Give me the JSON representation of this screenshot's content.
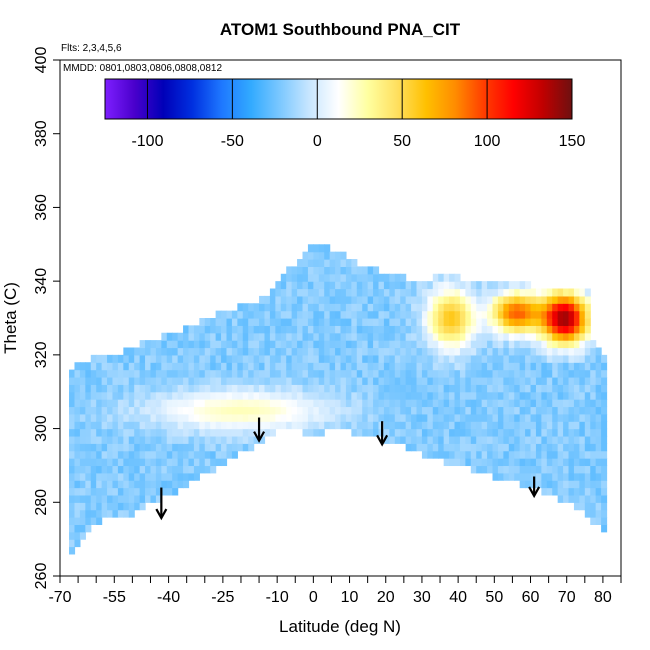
{
  "chart_data": {
    "type": "heatmap",
    "title": "ATOM1 Southbound PNA_CIT",
    "annotations": [
      "Flts: 2,3,4,5,6",
      "MMDD: 0801,0803,0806,0808,0812"
    ],
    "xlabel": "Latitude (deg N)",
    "ylabel": "Theta (C)",
    "xlim": [
      -70,
      85
    ],
    "ylim": [
      260,
      400
    ],
    "x_tick_labels": [
      "-70",
      "-55",
      "-40",
      "-25",
      "-10",
      "0",
      "10",
      "20",
      "30",
      "40",
      "50",
      "60",
      "70",
      "80"
    ],
    "x_tick_values": [
      -70,
      -55,
      -40,
      -25,
      -10,
      0,
      10,
      20,
      30,
      40,
      50,
      60,
      70,
      80
    ],
    "x_minor_ticks": [
      -65,
      -60,
      -50,
      -45,
      -35,
      -30,
      -20,
      -15,
      -5,
      5,
      15,
      25,
      35,
      45,
      55,
      65,
      75,
      85
    ],
    "y_tick_labels": [
      "260",
      "280",
      "300",
      "320",
      "340",
      "360",
      "380",
      "400"
    ],
    "y_tick_values": [
      260,
      280,
      300,
      320,
      340,
      360,
      380,
      400
    ],
    "colorbar": {
      "range": [
        -125,
        150
      ],
      "tick_labels": [
        "-100",
        "-50",
        "0",
        "50",
        "100",
        "150"
      ],
      "tick_values": [
        -100,
        -50,
        0,
        50,
        100,
        150
      ],
      "colors": [
        "#7e1fff",
        "#4a00cc",
        "#0000b8",
        "#0030e0",
        "#1e78ff",
        "#32aaff",
        "#7cc8ff",
        "#c8e6ff",
        "#ffffff",
        "#ffffa0",
        "#ffe060",
        "#ffc000",
        "#ff8c00",
        "#ff3c00",
        "#ff0000",
        "#c00000",
        "#6e1010"
      ]
    },
    "data_domain": {
      "bottom_boundary": [
        [
          -67.5,
          264
        ],
        [
          -65,
          268
        ],
        [
          -62,
          272
        ],
        [
          -58,
          276
        ],
        [
          -55,
          277
        ],
        [
          -51,
          276
        ],
        [
          -47,
          279
        ],
        [
          -42,
          281
        ],
        [
          -38,
          283
        ],
        [
          -33,
          286
        ],
        [
          -27,
          289
        ],
        [
          -22,
          292
        ],
        [
          -17,
          295
        ],
        [
          -13,
          297
        ],
        [
          -10,
          300
        ],
        [
          -5,
          300
        ],
        [
          0,
          298
        ],
        [
          5,
          300
        ],
        [
          10,
          299
        ],
        [
          15,
          298
        ],
        [
          20,
          297
        ],
        [
          30,
          293
        ],
        [
          40,
          290
        ],
        [
          50,
          287
        ],
        [
          60,
          284
        ],
        [
          65,
          282
        ],
        [
          70,
          280
        ],
        [
          76,
          276
        ],
        [
          80,
          272
        ]
      ],
      "top_boundary": [
        [
          -67.5,
          316
        ],
        [
          -60,
          320
        ],
        [
          -52,
          321
        ],
        [
          -45,
          324
        ],
        [
          -38,
          326
        ],
        [
          -32,
          329
        ],
        [
          -25,
          332
        ],
        [
          -18,
          334
        ],
        [
          -13,
          336
        ],
        [
          -10,
          340
        ],
        [
          -5,
          345
        ],
        [
          -2,
          348
        ],
        [
          0,
          350
        ],
        [
          5,
          349
        ],
        [
          10,
          346
        ],
        [
          15,
          344
        ],
        [
          20,
          342
        ],
        [
          25,
          341
        ],
        [
          30,
          340
        ],
        [
          35,
          342
        ],
        [
          40,
          341
        ],
        [
          50,
          340
        ],
        [
          60,
          339
        ],
        [
          70,
          338
        ],
        [
          76,
          338
        ],
        [
          76,
          325
        ],
        [
          80,
          320
        ]
      ]
    },
    "features": [
      {
        "name": "high-values-northern-upper",
        "x_range": [
          62,
          77
        ],
        "theta_range": [
          322,
          338
        ],
        "value_range": [
          90,
          140
        ]
      },
      {
        "name": "moderate-positive-north-upper",
        "x_range": [
          48,
          64
        ],
        "theta_range": [
          325,
          338
        ],
        "value_range": [
          50,
          90
        ]
      },
      {
        "name": "positive-band-30-45",
        "x_range": [
          30,
          46
        ],
        "theta_range": [
          320,
          340
        ],
        "value_range": [
          20,
          60
        ]
      },
      {
        "name": "negative-patch-near-20N",
        "x_range": [
          18,
          29
        ],
        "theta_range": [
          306,
          315
        ],
        "value_range": [
          -40,
          -25
        ]
      },
      {
        "name": "positive-belt-south-to-equator",
        "x_range": [
          -50,
          10
        ],
        "theta_range": [
          298,
          312
        ],
        "value_range": [
          5,
          25
        ]
      },
      {
        "name": "background-values",
        "x_range": [
          -67.5,
          80
        ],
        "theta_range": [
          265,
          350
        ],
        "value_range": [
          -30,
          -10
        ]
      }
    ],
    "arrows": [
      {
        "latitude": -42,
        "theta_from": 284,
        "theta_to": 276
      },
      {
        "latitude": -15,
        "theta_from": 303,
        "theta_to": 297
      },
      {
        "latitude": 19,
        "theta_from": 302,
        "theta_to": 296
      },
      {
        "latitude": 61,
        "theta_from": 287,
        "theta_to": 282
      }
    ]
  }
}
